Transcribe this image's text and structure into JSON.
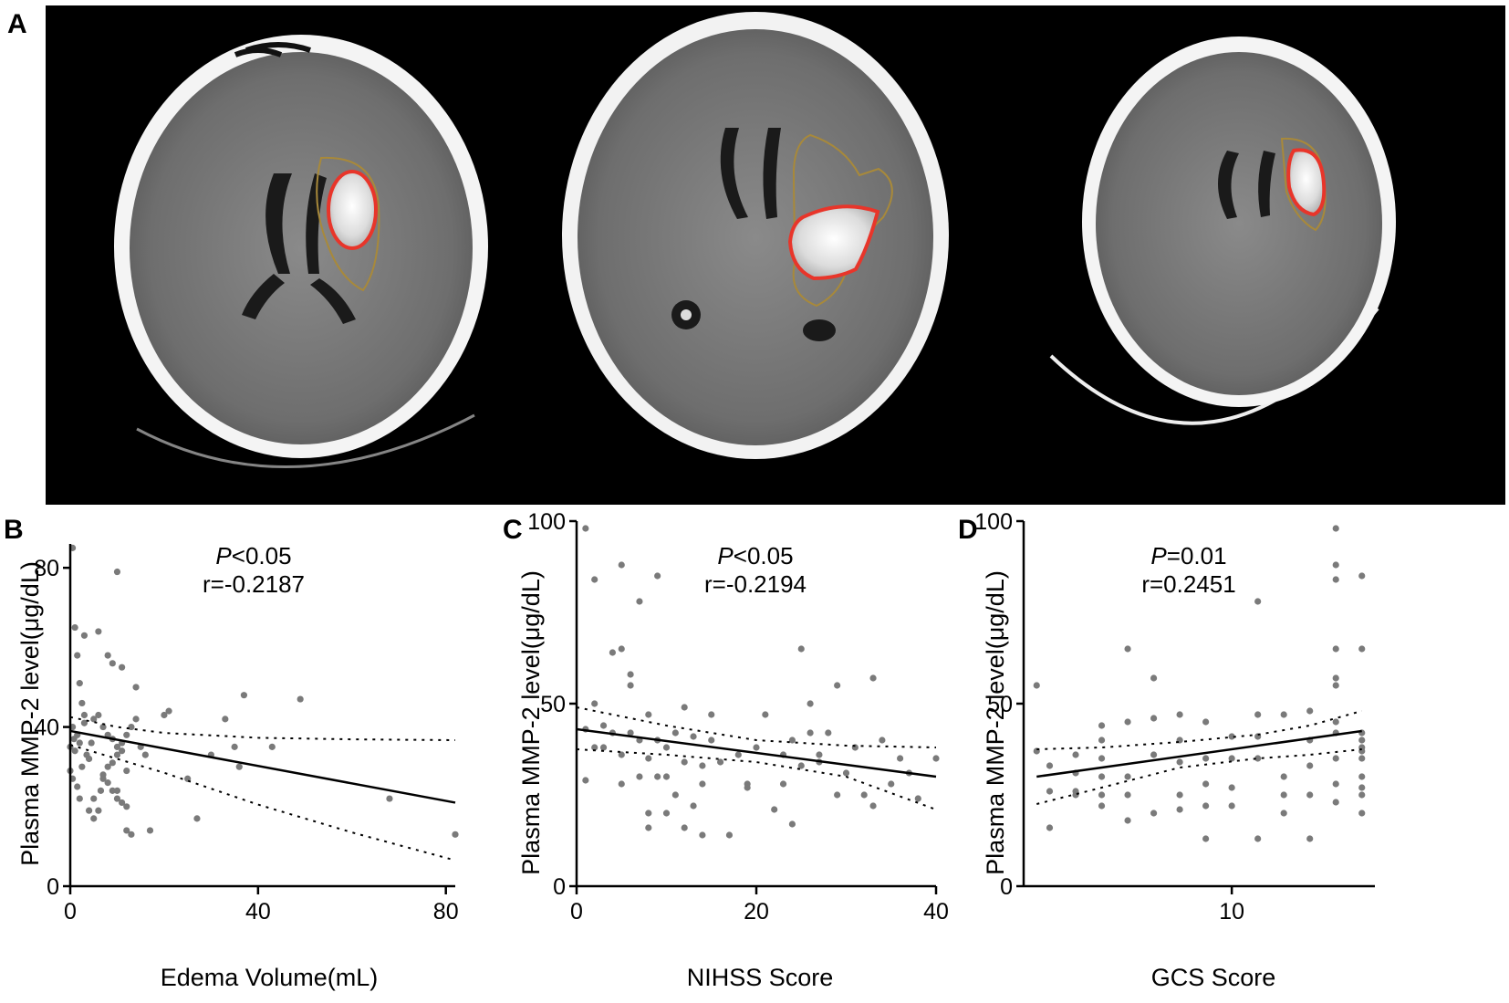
{
  "panel_letters": [
    "A",
    "B",
    "C",
    "D"
  ],
  "colors": {
    "ct_background": "#000000",
    "hematoma_outline": "#e8352a",
    "edema_outline": "#a8893a",
    "points": "#7a7a7a",
    "line": "#000000"
  },
  "ct_images": [
    {
      "name": "ct-scan-1"
    },
    {
      "name": "ct-scan-2"
    },
    {
      "name": "ct-scan-3"
    }
  ],
  "chart_data": [
    {
      "type": "scatter",
      "panel": "B",
      "xlabel": "Edema Volume(mL)",
      "ylabel": "Plasma MMP-2 level(μg/dL)",
      "xlim": [
        0,
        82
      ],
      "ylim": [
        0,
        86
      ],
      "xticks": [
        0,
        40,
        80
      ],
      "yticks": [
        0,
        40,
        80
      ],
      "xtick_labels": [
        "0",
        "40",
        "80"
      ],
      "ytick_labels": [
        "0",
        "40",
        "80"
      ],
      "stat_p_symbol": "P",
      "stat_p_rest": "<0.05",
      "stat_r": "r=-0.2187",
      "fit_line": {
        "x": [
          0,
          82
        ],
        "y": [
          39,
          21
        ]
      },
      "ci_upper": {
        "x": [
          0,
          10,
          20,
          40,
          60,
          82
        ],
        "y": [
          42.5,
          40,
          38.5,
          37.3,
          36.9,
          36.7
        ]
      },
      "ci_lower": {
        "x": [
          0,
          10,
          20,
          40,
          60,
          82
        ],
        "y": [
          35.5,
          32,
          28.5,
          20.5,
          13.5,
          6.5
        ]
      },
      "points": {
        "x": [
          0.5,
          1,
          1.5,
          2,
          2.5,
          3,
          3,
          0.5,
          1.5,
          0.8,
          2,
          0,
          1,
          3.5,
          4,
          2.5,
          0,
          0.5,
          1.5,
          2,
          4,
          5,
          6,
          6.5,
          7,
          8,
          9,
          10,
          11,
          12,
          13,
          14,
          15,
          16,
          4.5,
          7,
          8,
          9,
          10,
          11,
          12,
          5,
          6,
          7,
          8,
          9,
          10,
          11,
          12,
          6,
          8,
          9,
          10,
          11,
          12,
          13,
          17,
          20,
          21,
          25,
          27,
          30,
          33,
          35,
          36,
          37,
          43,
          49,
          68,
          82,
          10,
          14,
          3,
          5
        ],
        "y": [
          85,
          65,
          58,
          51,
          46,
          43,
          41,
          40,
          38,
          37,
          36,
          35,
          34,
          33,
          32,
          30,
          29,
          27,
          25,
          22,
          19,
          17,
          19,
          24,
          28,
          30,
          31,
          33,
          36,
          38,
          40,
          42,
          35,
          33,
          36,
          27,
          26,
          24,
          22,
          21,
          20,
          42,
          43,
          40,
          38,
          37,
          35,
          34,
          29,
          64,
          58,
          56,
          79,
          55,
          14,
          13,
          14,
          43,
          44,
          27,
          17,
          33,
          42,
          35,
          30,
          48,
          35,
          47,
          22,
          13,
          24,
          50,
          63,
          22
        ]
      }
    },
    {
      "type": "scatter",
      "panel": "C",
      "xlabel": "NIHSS Score",
      "ylabel": "Plasma MMP-2 level(μg/dL)",
      "xlim": [
        0,
        40
      ],
      "ylim": [
        0,
        100
      ],
      "xticks": [
        0,
        20,
        40
      ],
      "yticks": [
        0,
        50,
        100
      ],
      "xtick_labels": [
        "0",
        "20",
        "40"
      ],
      "ytick_labels": [
        "0",
        "50",
        "100"
      ],
      "stat_p_symbol": "P",
      "stat_p_rest": "<0.05",
      "stat_r": "r=-0.2194",
      "fit_line": {
        "x": [
          0,
          40
        ],
        "y": [
          43,
          30
        ]
      },
      "ci_upper": {
        "x": [
          0,
          10,
          20,
          30,
          40
        ],
        "y": [
          49,
          44,
          40,
          38.5,
          38
        ]
      },
      "ci_lower": {
        "x": [
          0,
          10,
          20,
          30,
          40
        ],
        "y": [
          37.5,
          36,
          34,
          30,
          21
        ]
      },
      "points": {
        "x": [
          1,
          2,
          1,
          2,
          3,
          4,
          4,
          5,
          5,
          5,
          6,
          6,
          6,
          7,
          7,
          7,
          8,
          8,
          8,
          9,
          9,
          10,
          10,
          11,
          11,
          12,
          12,
          13,
          13,
          14,
          14,
          15,
          15,
          16,
          17,
          18,
          19,
          20,
          21,
          22,
          23,
          24,
          25,
          25,
          26,
          26,
          27,
          28,
          29,
          30,
          31,
          32,
          33,
          34,
          35,
          36,
          38,
          40,
          3,
          5,
          8,
          9,
          10,
          12,
          14,
          19,
          23,
          27,
          29,
          33,
          37,
          24,
          2,
          1
        ],
        "y": [
          98,
          84,
          43,
          38,
          44,
          64,
          42,
          88,
          65,
          36,
          58,
          55,
          42,
          78,
          40,
          30,
          47,
          35,
          20,
          85,
          40,
          38,
          30,
          42,
          25,
          49,
          16,
          41,
          22,
          33,
          14,
          40,
          47,
          34,
          14,
          36,
          28,
          38,
          47,
          21,
          36,
          17,
          65,
          33,
          50,
          42,
          36,
          42,
          55,
          31,
          38,
          25,
          57,
          40,
          28,
          35,
          24,
          35,
          38,
          28,
          16,
          30,
          20,
          34,
          28,
          27,
          28,
          34,
          25,
          22,
          31,
          40,
          50,
          29
        ]
      }
    },
    {
      "type": "scatter",
      "panel": "D",
      "xlabel": "GCS Score",
      "ylabel": "Plasma MMP-2 level(μg/dL)",
      "xlim": [
        2,
        15.5
      ],
      "ylim": [
        0,
        100
      ],
      "xticks": [
        10
      ],
      "yticks": [
        0,
        50,
        100
      ],
      "xtick_labels": [
        "10"
      ],
      "ytick_labels": [
        "0",
        "50",
        "100"
      ],
      "stat_p_symbol": "P",
      "stat_p_rest": "=0.01",
      "stat_r": "r=0.2451",
      "fit_line": {
        "x": [
          2.5,
          15
        ],
        "y": [
          30,
          42.5
        ]
      },
      "ci_upper": {
        "x": [
          2.5,
          5,
          8,
          11,
          13,
          15
        ],
        "y": [
          37.5,
          38,
          39.5,
          41.5,
          44,
          48
        ]
      },
      "ci_lower": {
        "x": [
          2.5,
          5,
          8,
          11,
          13,
          15
        ],
        "y": [
          22.5,
          27,
          32.5,
          35,
          36,
          37.5
        ]
      },
      "points": {
        "x": [
          2.5,
          2.5,
          3,
          3,
          3,
          4,
          4,
          4,
          4,
          5,
          5,
          5,
          5,
          5,
          5,
          6,
          6,
          6,
          6,
          6,
          7,
          7,
          7,
          7,
          8,
          8,
          8,
          8,
          8,
          9,
          9,
          9,
          9,
          9,
          10,
          10,
          10,
          10,
          11,
          11,
          11,
          11,
          11,
          12,
          12,
          12,
          12,
          13,
          13,
          13,
          13,
          13,
          14,
          14,
          14,
          14,
          14,
          14,
          14,
          14,
          14,
          14,
          14,
          15,
          15,
          15,
          15,
          15,
          15,
          15,
          15,
          15,
          15,
          15
        ],
        "y": [
          55,
          37,
          33,
          26,
          16,
          31,
          26,
          25,
          36,
          44,
          40,
          35,
          30,
          25,
          22,
          65,
          45,
          30,
          25,
          18,
          57,
          46,
          36,
          20,
          47,
          40,
          34,
          25,
          21,
          45,
          35,
          28,
          22,
          13,
          41,
          35,
          27,
          22,
          78,
          47,
          41,
          35,
          13,
          47,
          30,
          25,
          20,
          48,
          40,
          33,
          25,
          13,
          98,
          88,
          84,
          65,
          57,
          55,
          45,
          42,
          35,
          28,
          23,
          85,
          65,
          42,
          38,
          35,
          30,
          27,
          20,
          37,
          40,
          25
        ]
      }
    }
  ]
}
